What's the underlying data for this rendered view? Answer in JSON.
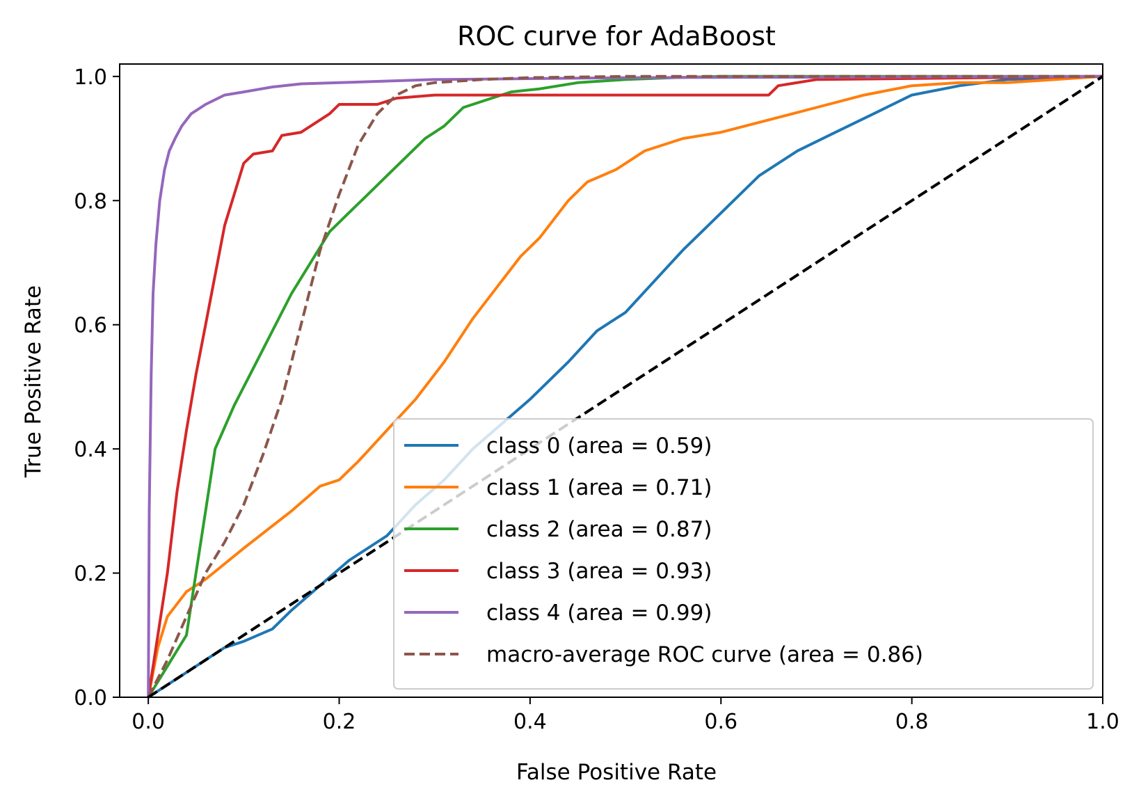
{
  "chart_data": {
    "type": "line",
    "title": "ROC curve for AdaBoost",
    "xlabel": "False Positive Rate",
    "ylabel": "True Positive Rate",
    "xlim": [
      -0.03,
      1.0
    ],
    "ylim": [
      0.0,
      1.02
    ],
    "xticks": [
      "0.0",
      "0.2",
      "0.4",
      "0.6",
      "0.8",
      "1.0"
    ],
    "yticks": [
      "0.0",
      "0.2",
      "0.4",
      "0.6",
      "0.8",
      "1.0"
    ],
    "grid": false,
    "legend_position": "lower right",
    "series": [
      {
        "name": "class 0 (area = 0.59)",
        "color": "#1f77b4",
        "dash": "solid",
        "x": [
          0,
          0.02,
          0.05,
          0.08,
          0.1,
          0.13,
          0.15,
          0.18,
          0.21,
          0.25,
          0.28,
          0.31,
          0.34,
          0.37,
          0.4,
          0.44,
          0.47,
          0.5,
          0.53,
          0.56,
          0.6,
          0.64,
          0.68,
          0.72,
          0.76,
          0.8,
          0.85,
          0.9,
          1.0
        ],
        "y": [
          0,
          0.02,
          0.05,
          0.08,
          0.09,
          0.11,
          0.14,
          0.18,
          0.22,
          0.26,
          0.31,
          0.35,
          0.4,
          0.44,
          0.48,
          0.54,
          0.59,
          0.62,
          0.67,
          0.72,
          0.78,
          0.84,
          0.88,
          0.91,
          0.94,
          0.97,
          0.985,
          0.995,
          1.0
        ]
      },
      {
        "name": "class 1 (area = 0.71)",
        "color": "#ff7f0e",
        "dash": "solid",
        "x": [
          0,
          0.01,
          0.02,
          0.04,
          0.06,
          0.1,
          0.15,
          0.18,
          0.2,
          0.22,
          0.25,
          0.28,
          0.31,
          0.34,
          0.37,
          0.39,
          0.41,
          0.44,
          0.46,
          0.49,
          0.52,
          0.56,
          0.6,
          0.65,
          0.7,
          0.75,
          0.8,
          0.85,
          0.9,
          1.0
        ],
        "y": [
          0,
          0.08,
          0.13,
          0.17,
          0.19,
          0.24,
          0.3,
          0.34,
          0.35,
          0.38,
          0.43,
          0.48,
          0.54,
          0.61,
          0.67,
          0.71,
          0.74,
          0.8,
          0.83,
          0.85,
          0.88,
          0.9,
          0.91,
          0.93,
          0.95,
          0.97,
          0.985,
          0.99,
          0.99,
          1.0
        ]
      },
      {
        "name": "class 2 (area = 0.87)",
        "color": "#2ca02c",
        "dash": "solid",
        "x": [
          0,
          0.02,
          0.04,
          0.05,
          0.06,
          0.07,
          0.09,
          0.11,
          0.13,
          0.15,
          0.17,
          0.19,
          0.21,
          0.23,
          0.25,
          0.27,
          0.29,
          0.31,
          0.33,
          0.35,
          0.38,
          0.41,
          0.45,
          0.5,
          0.55,
          0.6,
          1.0
        ],
        "y": [
          0,
          0.05,
          0.1,
          0.2,
          0.3,
          0.4,
          0.47,
          0.53,
          0.59,
          0.65,
          0.7,
          0.75,
          0.78,
          0.81,
          0.84,
          0.87,
          0.9,
          0.92,
          0.95,
          0.96,
          0.975,
          0.98,
          0.99,
          0.995,
          0.998,
          1.0,
          1.0
        ]
      },
      {
        "name": "class 3 (area = 0.93)",
        "color": "#d62728",
        "dash": "solid",
        "x": [
          0,
          0.01,
          0.02,
          0.03,
          0.04,
          0.05,
          0.06,
          0.07,
          0.08,
          0.09,
          0.1,
          0.11,
          0.13,
          0.14,
          0.16,
          0.18,
          0.19,
          0.2,
          0.22,
          0.24,
          0.26,
          0.3,
          0.4,
          0.5,
          0.65,
          0.66,
          0.7,
          1.0
        ],
        "y": [
          0,
          0.1,
          0.2,
          0.33,
          0.43,
          0.52,
          0.6,
          0.68,
          0.76,
          0.81,
          0.86,
          0.875,
          0.88,
          0.905,
          0.91,
          0.93,
          0.94,
          0.955,
          0.955,
          0.955,
          0.965,
          0.97,
          0.97,
          0.97,
          0.97,
          0.985,
          0.995,
          1.0
        ]
      },
      {
        "name": "class 4 (area = 0.99)",
        "color": "#9467bd",
        "dash": "solid",
        "x": [
          0,
          0.001,
          0.003,
          0.005,
          0.008,
          0.012,
          0.017,
          0.022,
          0.028,
          0.035,
          0.045,
          0.06,
          0.08,
          0.1,
          0.13,
          0.16,
          0.2,
          0.3,
          0.5,
          1.0
        ],
        "y": [
          0,
          0.3,
          0.52,
          0.65,
          0.73,
          0.8,
          0.85,
          0.88,
          0.9,
          0.92,
          0.94,
          0.955,
          0.97,
          0.975,
          0.983,
          0.988,
          0.99,
          0.995,
          0.998,
          1.0
        ]
      },
      {
        "name": "macro-average ROC curve (area = 0.86)",
        "color": "#8c564b",
        "dash": "dashed",
        "x": [
          0,
          0.02,
          0.04,
          0.06,
          0.08,
          0.1,
          0.12,
          0.14,
          0.16,
          0.18,
          0.2,
          0.22,
          0.24,
          0.26,
          0.28,
          0.3,
          0.35,
          0.4,
          0.5,
          1.0
        ],
        "y": [
          0,
          0.06,
          0.13,
          0.2,
          0.25,
          0.31,
          0.39,
          0.48,
          0.6,
          0.72,
          0.81,
          0.89,
          0.94,
          0.97,
          0.985,
          0.99,
          0.995,
          0.998,
          1.0,
          1.0
        ]
      },
      {
        "name": "",
        "color": "#000000",
        "dash": "dashed",
        "x": [
          0,
          1
        ],
        "y": [
          0,
          1
        ]
      }
    ]
  }
}
